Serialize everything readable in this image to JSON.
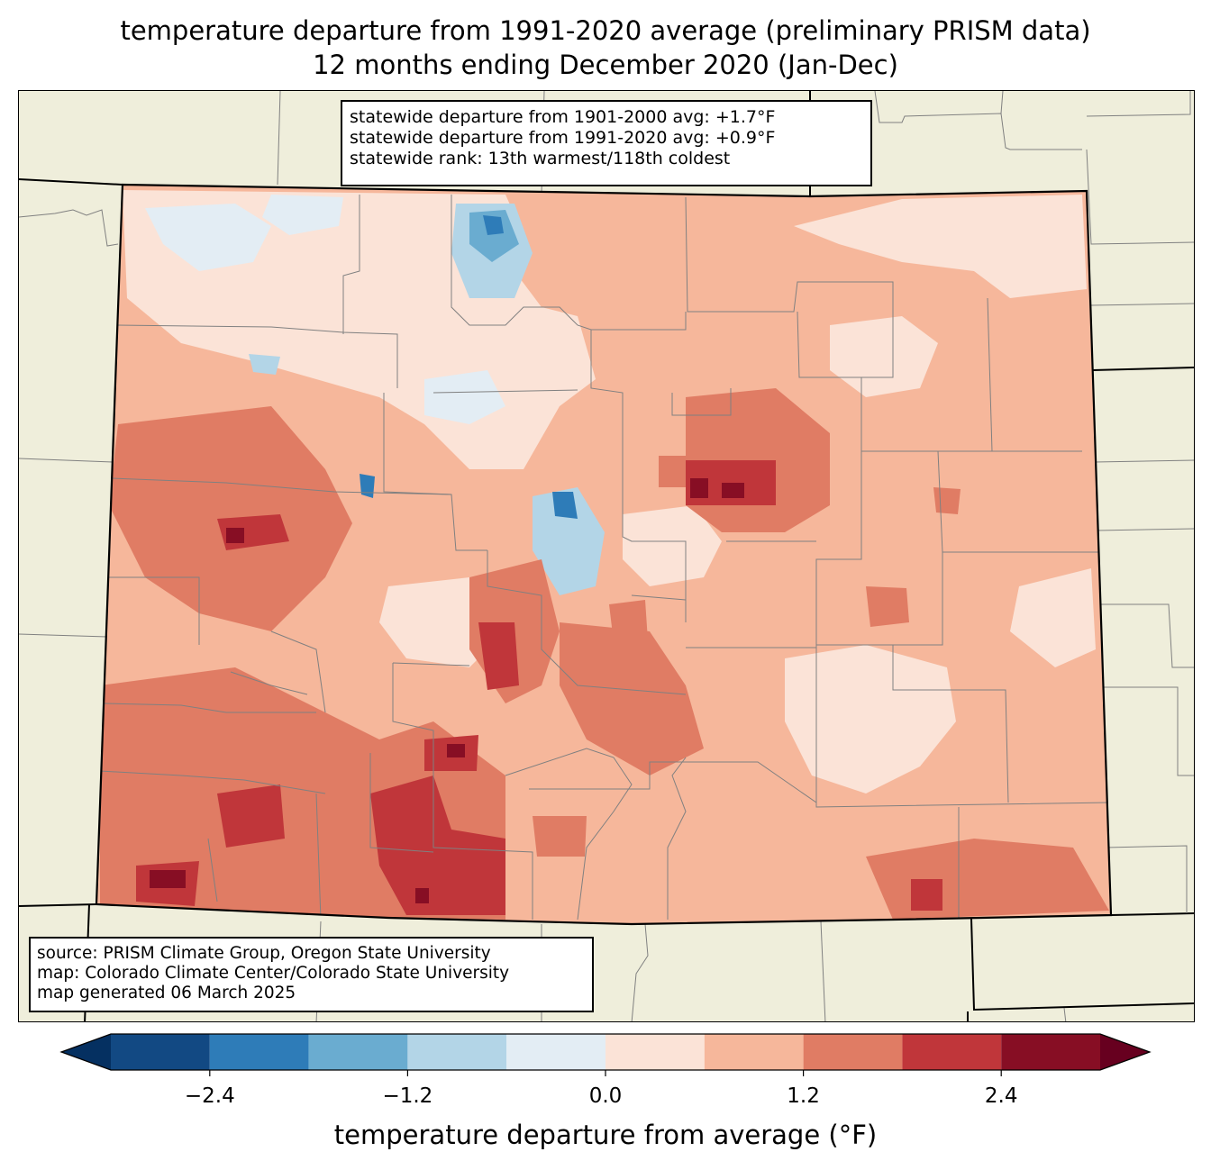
{
  "title": {
    "line1": "temperature departure from 1991-2020 average (preliminary PRISM data)",
    "line2": "12 months ending December 2020 (Jan-Dec)"
  },
  "stats": {
    "line1": "statewide departure from 1901-2000 avg: +1.7°F",
    "line2": "statewide departure from 1991-2020 avg: +0.9°F",
    "line3": "statewide rank: 13th warmest/118th coldest"
  },
  "credits": {
    "line1": "source: PRISM Climate Group, Oregon State University",
    "line2": "map: Colorado Climate Center/Colorado State University",
    "line3": "map generated 06 March 2025"
  },
  "colorbar": {
    "label": "temperature departure from average (°F)",
    "ticks": [
      "−2.4",
      "−1.2",
      "0.0",
      "1.2",
      "2.4"
    ],
    "tick_values": [
      -2.4,
      -1.2,
      0.0,
      1.2,
      2.4
    ],
    "range": [
      -3.0,
      3.0
    ],
    "bin_width": 0.6,
    "colors": [
      "#124983",
      "#2e7cb8",
      "#6aacd0",
      "#b3d5e7",
      "#e3edf4",
      "#fbe3d7",
      "#f6b79b",
      "#e07c64",
      "#c0363a",
      "#870e24"
    ],
    "under_color": "#053061",
    "over_color": "#67001f"
  },
  "colors": {
    "land": "#efeedb",
    "base_fill": "#f6b79b",
    "state_border": "#000000",
    "county_border": "#808080"
  }
}
